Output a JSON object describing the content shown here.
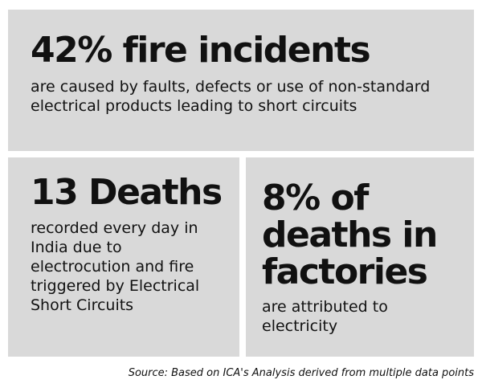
{
  "top_stat": {
    "headline": "42% fire incidents",
    "description": "are caused by faults, defects or use of non-standard electrical products leading to short circuits"
  },
  "left_stat": {
    "headline": "13 Deaths",
    "description": "recorded every day in India due to electrocution and fire triggered by Electrical Short Circuits"
  },
  "right_stat": {
    "headline": "8% of deaths in factories",
    "description": "are attributed to electricity"
  },
  "source": "Source: Based on ICA's Analysis derived from multiple data points",
  "colors": {
    "panel_background": "#d9d9d9",
    "text": "#111111",
    "page_background": "#ffffff"
  }
}
